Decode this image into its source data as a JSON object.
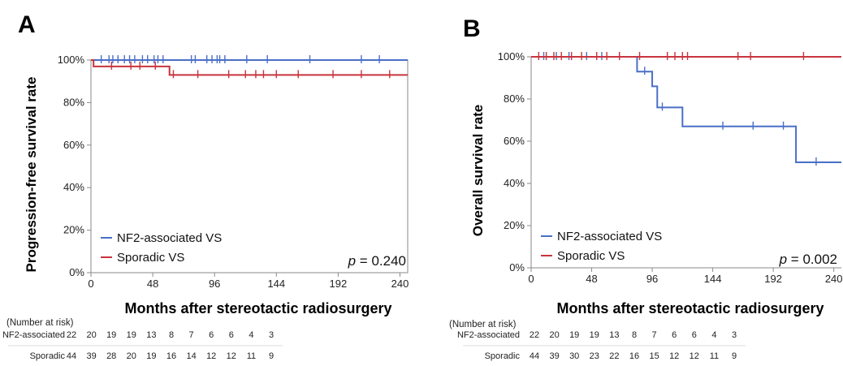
{
  "chart_data": [
    {
      "panel": "A",
      "type": "line",
      "step": true,
      "ylabel": "Progression-free survival rate",
      "xlabel": "Months after stereotactic radiosurgery",
      "xlim": [
        0,
        246
      ],
      "ylim": [
        0,
        100
      ],
      "xticks": [
        "0",
        "48",
        "96",
        "144",
        "192",
        "240"
      ],
      "yticks": [
        "0%",
        "20%",
        "40%",
        "60%",
        "80%",
        "100%"
      ],
      "grid": false,
      "legend_position": "bottom-left",
      "p_label": "p",
      "p_value": "= 0.240",
      "series": [
        {
          "name": "NF2-associated VS",
          "color": "#4a6fc7",
          "x": [
            0,
            246
          ],
          "y": [
            100,
            100
          ],
          "censor_x": [
            8,
            14,
            17,
            21,
            26,
            30,
            34,
            40,
            44,
            49,
            52,
            56,
            78,
            81,
            90,
            94,
            98,
            100,
            104,
            121,
            137,
            170,
            210,
            224
          ]
        },
        {
          "name": "Sporadic VS",
          "color": "#c8343e",
          "x": [
            0,
            2,
            58,
            61,
            246
          ],
          "y": [
            100,
            97,
            97,
            93,
            93
          ],
          "censor_x": [
            16,
            31,
            38,
            50,
            64,
            83,
            107,
            120,
            128,
            134,
            144,
            161,
            188,
            210,
            232
          ]
        }
      ],
      "risk_table": {
        "title": "(Number at risk)",
        "times": [
          0,
          24,
          48,
          72,
          96,
          120,
          144,
          168,
          192,
          216,
          240
        ],
        "rows": [
          {
            "label": "NF2-associated",
            "values": [
              "22",
              "20",
              "19",
              "19",
              "13",
              "8",
              "7",
              "6",
              "6",
              "4",
              "3"
            ]
          },
          {
            "label": "Sporadic",
            "values": [
              "44",
              "39",
              "28",
              "20",
              "19",
              "16",
              "14",
              "12",
              "12",
              "11",
              "9"
            ]
          }
        ]
      }
    },
    {
      "panel": "B",
      "type": "line",
      "step": true,
      "ylabel": "Overall survival rate",
      "xlabel": "Months after stereotactic radiosurgery",
      "xlim": [
        0,
        246
      ],
      "ylim": [
        0,
        100
      ],
      "xticks": [
        "0",
        "48",
        "96",
        "144",
        "192",
        "240"
      ],
      "yticks": [
        "0%",
        "20%",
        "40%",
        "60%",
        "80%",
        "100%"
      ],
      "grid": false,
      "legend_position": "bottom-left",
      "p_label": "p",
      "p_value": "= 0.002",
      "series": [
        {
          "name": "NF2-associated VS",
          "color": "#4a6fc7",
          "x": [
            0,
            84,
            96,
            100,
            120,
            210,
            246
          ],
          "y": [
            100,
            93,
            86,
            76,
            67,
            50,
            50
          ],
          "censor_x": [
            10,
            20,
            30,
            44,
            56,
            70,
            90,
            104,
            152,
            176,
            200,
            226
          ]
        },
        {
          "name": "Sporadic VS",
          "color": "#c8343e",
          "x": [
            0,
            246
          ],
          "y": [
            100,
            100
          ],
          "censor_x": [
            6,
            12,
            18,
            24,
            32,
            40,
            52,
            60,
            70,
            86,
            108,
            114,
            120,
            124,
            164,
            174,
            216
          ]
        }
      ],
      "risk_table": {
        "title": "(Number at risk)",
        "times": [
          0,
          24,
          48,
          72,
          96,
          120,
          144,
          168,
          192,
          216,
          240
        ],
        "rows": [
          {
            "label": "NF2-associated",
            "values": [
              "22",
              "20",
              "19",
              "19",
              "13",
              "8",
              "7",
              "6",
              "6",
              "4",
              "3"
            ]
          },
          {
            "label": "Sporadic",
            "values": [
              "44",
              "39",
              "30",
              "23",
              "22",
              "16",
              "15",
              "12",
              "12",
              "11",
              "9"
            ]
          }
        ]
      }
    }
  ]
}
